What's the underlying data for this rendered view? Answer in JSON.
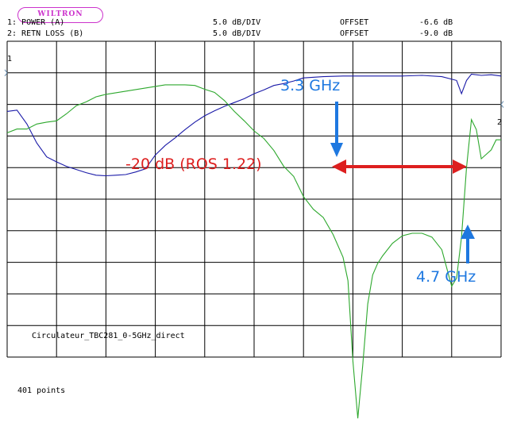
{
  "header": {
    "logo_text": "WILTRON",
    "trace1": {
      "label": "1: POWER (A)",
      "scale": "5.0 dB/DIV",
      "offset_label": "OFFSET",
      "offset_value": "-6.6 dB",
      "marker": "1"
    },
    "trace2": {
      "label": "2: RETN LOSS (B)",
      "scale": "5.0 dB/DIV",
      "offset_label": "OFFSET",
      "offset_value": "-9.0 dB",
      "marker": "2"
    }
  },
  "footer": {
    "filename": "Circulateur_TBC281_0-5GHz_direct",
    "points": "401 points"
  },
  "colors": {
    "power_trace": "#1a1aa8",
    "return_loss_trace": "#2da82d",
    "annotation_blue": "#1e78e0",
    "annotation_red": "#dd1f1f",
    "grid": "#000000",
    "logo": "#cc33cc"
  },
  "annotations": {
    "low_freq": "3.3 GHz",
    "high_freq": "4.7 GHz",
    "bandwidth": "-20 dB (ROS 1.22)"
  },
  "chart_data": {
    "type": "line",
    "grid": true,
    "divisions": {
      "x": 10,
      "y": 10
    },
    "x_unit": "GHz",
    "x_range": [
      0,
      5
    ],
    "series": [
      {
        "name": "1: POWER (A)",
        "color": "#1a1aa8",
        "unit": "dB",
        "x": [
          0.0,
          0.1,
          0.2,
          0.3,
          0.4,
          0.5,
          0.6,
          0.7,
          0.8,
          0.9,
          1.0,
          1.1,
          1.2,
          1.3,
          1.4,
          1.5,
          1.6,
          1.7,
          1.8,
          1.9,
          2.0,
          2.1,
          2.2,
          2.3,
          2.4,
          2.5,
          2.6,
          2.7,
          2.8,
          2.9,
          3.0,
          3.2,
          3.4,
          3.6,
          3.8,
          4.0,
          4.2,
          4.4,
          4.55,
          4.6,
          4.65,
          4.7,
          4.8,
          4.9,
          5.0
        ],
        "y": [
          -6.1,
          -5.9,
          -8.1,
          -11.1,
          -13.3,
          -14.1,
          -14.8,
          -15.3,
          -15.8,
          -16.2,
          -16.3,
          -16.2,
          -16.1,
          -15.7,
          -15.2,
          -13.0,
          -11.5,
          -10.3,
          -9.0,
          -7.8,
          -6.8,
          -6.0,
          -5.3,
          -4.7,
          -4.1,
          -3.3,
          -2.7,
          -2.0,
          -1.7,
          -1.3,
          -0.8,
          -0.6,
          -0.5,
          -0.5,
          -0.5,
          -0.5,
          -0.4,
          -0.6,
          -1.2,
          -3.3,
          -1.2,
          -0.2,
          -0.4,
          -0.3,
          -0.5
        ]
      },
      {
        "name": "2: RETN LOSS (B)",
        "color": "#2da82d",
        "unit": "dB",
        "x": [
          0.0,
          0.1,
          0.2,
          0.3,
          0.4,
          0.5,
          0.6,
          0.7,
          0.8,
          0.9,
          1.0,
          1.2,
          1.4,
          1.6,
          1.8,
          1.9,
          2.0,
          2.1,
          2.2,
          2.3,
          2.4,
          2.5,
          2.6,
          2.7,
          2.8,
          2.9,
          3.0,
          3.1,
          3.2,
          3.3,
          3.4,
          3.45,
          3.5,
          3.55,
          3.6,
          3.65,
          3.7,
          3.75,
          3.8,
          3.9,
          4.0,
          4.1,
          4.2,
          4.3,
          4.4,
          4.5,
          4.55,
          4.6,
          4.65,
          4.7,
          4.75,
          4.8,
          4.9,
          4.95,
          5.0
        ],
        "y": [
          -4.5,
          -3.9,
          -3.9,
          -3.1,
          -2.8,
          -2.6,
          -1.5,
          -0.2,
          0.4,
          1.2,
          1.6,
          2.1,
          2.6,
          3.1,
          3.1,
          3.0,
          2.4,
          1.9,
          0.6,
          -1.1,
          -2.6,
          -4.2,
          -5.4,
          -7.3,
          -9.8,
          -11.4,
          -14.6,
          -16.6,
          -17.9,
          -20.6,
          -24.2,
          -27.9,
          -40.6,
          -49.7,
          -41.3,
          -31.6,
          -27.0,
          -25.2,
          -24.0,
          -22.0,
          -20.8,
          -20.4,
          -20.4,
          -21.0,
          -23.0,
          -28.8,
          -27.5,
          -21.0,
          -10.0,
          -2.4,
          -4.0,
          -8.6,
          -7.2,
          -5.6,
          -5.6
        ]
      }
    ]
  }
}
